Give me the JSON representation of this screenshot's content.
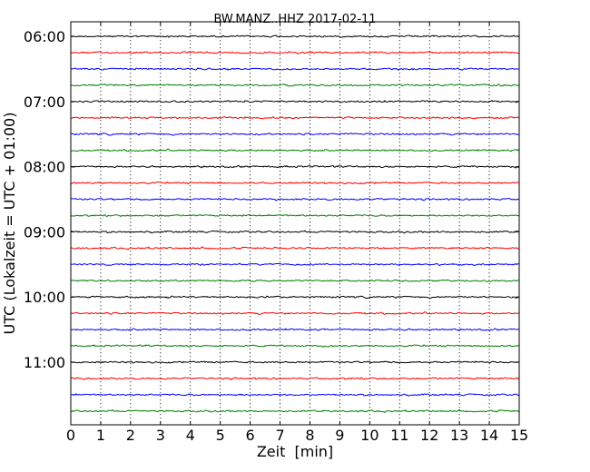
{
  "chart_data": {
    "type": "line",
    "title": "BW.MANZ..HHZ 2017-02-11",
    "xlabel": "Zeit  [min]",
    "ylabel": "UTC (Lokalzeit = UTC + 01:00)",
    "xlim": [
      0,
      15
    ],
    "x_ticks": [
      0,
      1,
      2,
      3,
      4,
      5,
      6,
      7,
      8,
      9,
      10,
      11,
      12,
      13,
      14,
      15
    ],
    "x_tick_labels": [
      "0",
      "1",
      "2",
      "3",
      "4",
      "5",
      "6",
      "7",
      "8",
      "9",
      "10",
      "11",
      "12",
      "13",
      "14",
      "15"
    ],
    "y_tick_labels": [
      "06:00",
      "07:00",
      "08:00",
      "09:00",
      "10:00",
      "11:00"
    ],
    "y_tick_traces": [
      0,
      4,
      8,
      12,
      16,
      20
    ],
    "x_grid": "dotted",
    "trace_count": 24,
    "trace_start": "06:00",
    "trace_length_min": 15,
    "colors": [
      "#000000",
      "#ff0000",
      "#0000ff",
      "#008000"
    ]
  }
}
